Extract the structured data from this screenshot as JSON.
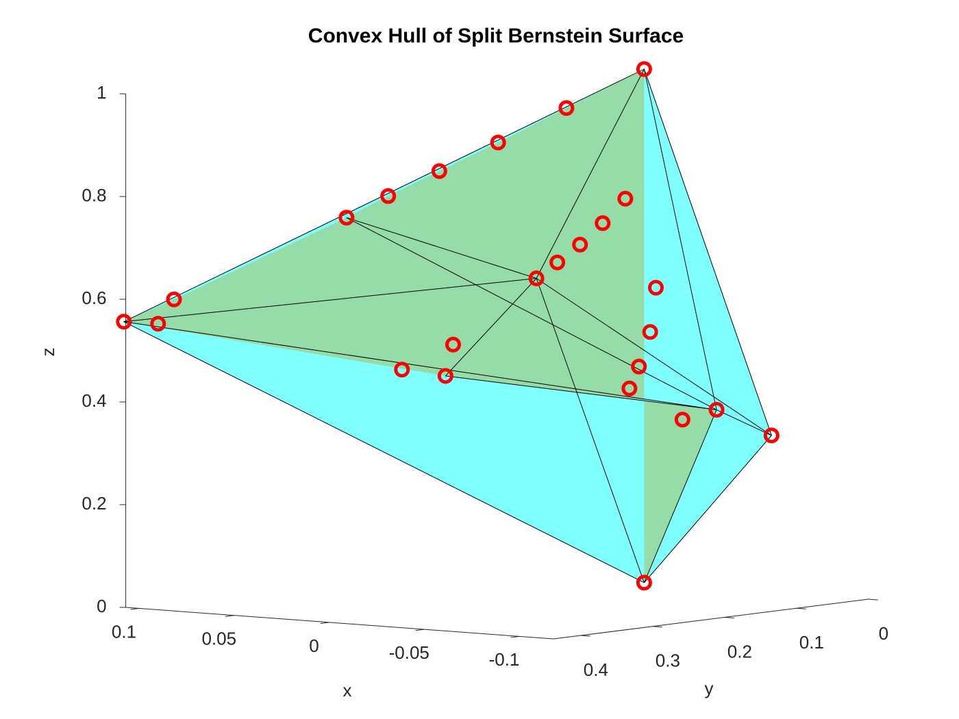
{
  "chart_data": {
    "type": "scatter3d",
    "title": "Convex Hull of Split Bernstein Surface",
    "xlabel": "x",
    "ylabel": "y",
    "zlabel": "z",
    "xlim": [
      -0.118,
      0.107
    ],
    "ylim": [
      0,
      0.438
    ],
    "zlim": [
      0,
      1
    ],
    "xticks": [
      -0.1,
      -0.05,
      0,
      0.05,
      0.1
    ],
    "yticks": [
      0,
      0.1,
      0.2,
      0.3,
      0.4
    ],
    "zticks": [
      0,
      0.2,
      0.4,
      0.6,
      0.8,
      1
    ],
    "hull_color": "#00ffff",
    "surface_color": "#a8c060",
    "series": [
      {
        "color": "#ff0000",
        "x": [
          0,
          0.022,
          0.039,
          0.051,
          0.059,
          0.062,
          0.096,
          0.108,
          -0.019,
          -0.009,
          -0.057,
          -0.067,
          0,
          0.09,
          -0.009,
          -0.016,
          -0.023,
          -0.03,
          -0.013,
          -0.005,
          -0.044,
          -0.041,
          -0.054,
          -0.049,
          -0.058
        ],
        "y": [
          0,
          0.05,
          0.1,
          0.15,
          0.2,
          0.25,
          0.4,
          0.438,
          0.2,
          0.3,
          0.05,
          0,
          0,
          0.438,
          0.05,
          0.1,
          0.15,
          0.2,
          0.3,
          0.35,
          0.1,
          0.1,
          0.15,
          0.15,
          0.1
        ],
        "z": [
          1,
          0.927,
          0.864,
          0.814,
          0.772,
          0.738,
          0.596,
          0.556,
          0.633,
          0.458,
          0.361,
          0.305,
          0,
          0.557,
          0.759,
          0.722,
          0.691,
          0.667,
          0.52,
          0.478,
          0.604,
          0.517,
          0.462,
          0.418,
          0.351
        ]
      }
    ]
  }
}
